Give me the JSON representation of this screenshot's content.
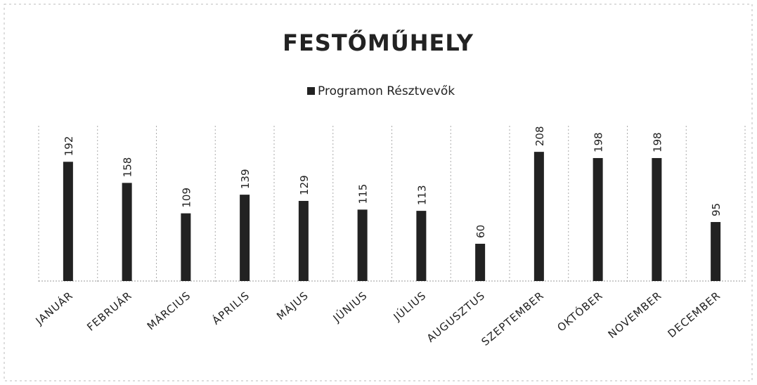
{
  "chart_data": {
    "type": "bar",
    "title": "FESTŐMŰHELY",
    "categories": [
      "JANUÁR",
      "FEBRUÁR",
      "MÁRCIUS",
      "ÁPRILIS",
      "MÁJUS",
      "JÚNIUS",
      "JÚLIUS",
      "AUGUSZTUS",
      "SZEPTEMBER",
      "OKTÓBER",
      "NOVEMBER",
      "DECEMBER"
    ],
    "series": [
      {
        "name": "Programon Résztvevők",
        "color": "#222222",
        "values": [
          192,
          158,
          109,
          139,
          129,
          115,
          113,
          60,
          208,
          198,
          198,
          95
        ]
      }
    ],
    "ylim": [
      0,
      250
    ]
  }
}
